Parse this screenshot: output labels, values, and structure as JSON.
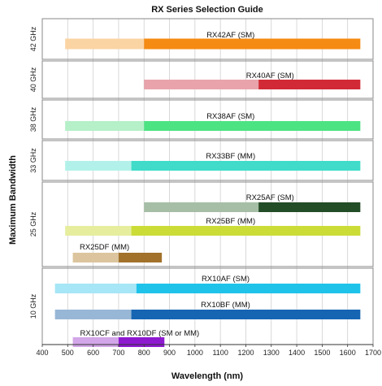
{
  "chart_data": {
    "type": "bar",
    "title": "RX Series Selection Guide",
    "xlabel": "Wavelength (nm)",
    "ylabel": "Maximum Bandwidth",
    "xlim": [
      400,
      1700
    ],
    "xticks": [
      400,
      500,
      600,
      700,
      800,
      900,
      1000,
      1100,
      1200,
      1300,
      1400,
      1500,
      1600,
      1700
    ],
    "grid": true,
    "groups": [
      {
        "label": "42 GHz",
        "products": [
          {
            "name": "RX42AF (SM)",
            "segments": [
              {
                "start": 490,
                "end": 800,
                "color": "#fbd4a4"
              },
              {
                "start": 800,
                "end": 1650,
                "color": "#f58b12"
              }
            ]
          }
        ]
      },
      {
        "label": "40 GHz",
        "products": [
          {
            "name": "RX40AF (SM)",
            "segments": [
              {
                "start": 800,
                "end": 1250,
                "color": "#e8a3ab"
              },
              {
                "start": 1250,
                "end": 1650,
                "color": "#d12a36"
              }
            ]
          }
        ]
      },
      {
        "label": "38 GHz",
        "products": [
          {
            "name": "RX38AF (SM)",
            "segments": [
              {
                "start": 490,
                "end": 800,
                "color": "#b5f0c8"
              },
              {
                "start": 800,
                "end": 1650,
                "color": "#4ce383"
              }
            ]
          }
        ]
      },
      {
        "label": "33 GHz",
        "products": [
          {
            "name": "RX33BF (MM)",
            "segments": [
              {
                "start": 490,
                "end": 750,
                "color": "#b2f1ea"
              },
              {
                "start": 750,
                "end": 1650,
                "color": "#40dcc9"
              }
            ]
          }
        ]
      },
      {
        "label": "25 GHz",
        "products": [
          {
            "name": "RX25AF (SM)",
            "segments": [
              {
                "start": 800,
                "end": 1250,
                "color": "#a6bea6"
              },
              {
                "start": 1250,
                "end": 1650,
                "color": "#224d27"
              }
            ]
          },
          {
            "name": "RX25BF (MM)",
            "segments": [
              {
                "start": 490,
                "end": 750,
                "color": "#e6ee9e"
              },
              {
                "start": 750,
                "end": 1650,
                "color": "#cbdc37"
              }
            ]
          },
          {
            "name": "RX25DF (MM)",
            "segments": [
              {
                "start": 520,
                "end": 700,
                "color": "#dcc59e"
              },
              {
                "start": 700,
                "end": 870,
                "color": "#a2722a"
              }
            ]
          }
        ]
      },
      {
        "label": "10 GHz",
        "products": [
          {
            "name": "RX10AF (SM)",
            "segments": [
              {
                "start": 450,
                "end": 770,
                "color": "#a6e6f6"
              },
              {
                "start": 770,
                "end": 1650,
                "color": "#1fc3ea"
              }
            ]
          },
          {
            "name": "RX10BF (MM)",
            "segments": [
              {
                "start": 450,
                "end": 750,
                "color": "#98b7d6"
              },
              {
                "start": 750,
                "end": 1650,
                "color": "#1565b3"
              }
            ]
          },
          {
            "name": "RX10CF and RX10DF (SM or MM)",
            "segments": [
              {
                "start": 520,
                "end": 700,
                "color": "#d2a6e8"
              },
              {
                "start": 700,
                "end": 880,
                "color": "#8e1ad0"
              }
            ]
          }
        ]
      }
    ]
  }
}
